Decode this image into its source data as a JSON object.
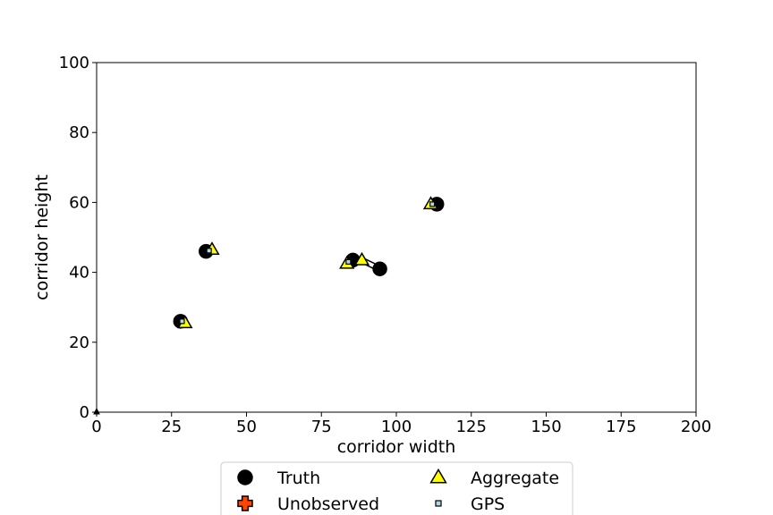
{
  "chart_data": {
    "type": "scatter",
    "xlabel": "corridor width",
    "ylabel": "corridor height",
    "xlim": [
      0,
      200
    ],
    "ylim": [
      0,
      100
    ],
    "xticks": [
      0,
      25,
      50,
      75,
      100,
      125,
      150,
      175,
      200
    ],
    "yticks": [
      0,
      20,
      40,
      60,
      80,
      100
    ],
    "grid": false,
    "legend_position": "bottom-center",
    "legend": [
      "Truth",
      "Unobserved",
      "Aggregate",
      "GPS"
    ],
    "series": [
      {
        "name": "Truth",
        "marker": "circle",
        "color": "#000000",
        "points": [
          [
            28,
            26
          ],
          [
            36.5,
            46
          ],
          [
            85.5,
            43.5
          ],
          [
            94.5,
            41
          ],
          [
            113.5,
            59.5
          ]
        ]
      },
      {
        "name": "Unobserved",
        "marker": "plus",
        "color": "#ff4500",
        "points": []
      },
      {
        "name": "Aggregate",
        "marker": "triangle",
        "color": "#ffff00",
        "points": [
          [
            29.5,
            25.5
          ],
          [
            38.5,
            46.5
          ],
          [
            83.5,
            42.5
          ],
          [
            88.5,
            43.5
          ],
          [
            111.5,
            59.5
          ]
        ]
      },
      {
        "name": "GPS",
        "marker": "square",
        "color": "#add8e6",
        "points": [
          [
            28.5,
            26
          ],
          [
            37.5,
            46.2
          ],
          [
            84,
            43
          ],
          [
            112,
            59.5
          ]
        ]
      }
    ],
    "links": [
      [
        [
          28,
          26
        ],
        [
          29.5,
          25.5
        ]
      ],
      [
        [
          36.5,
          46
        ],
        [
          38.5,
          46.5
        ]
      ],
      [
        [
          85.5,
          43.5
        ],
        [
          83.5,
          42.5
        ]
      ],
      [
        [
          94.5,
          41
        ],
        [
          88.5,
          43.5
        ]
      ],
      [
        [
          113.5,
          59.5
        ],
        [
          111.5,
          59.5
        ]
      ]
    ],
    "origin_marker": [
      0,
      0
    ]
  }
}
